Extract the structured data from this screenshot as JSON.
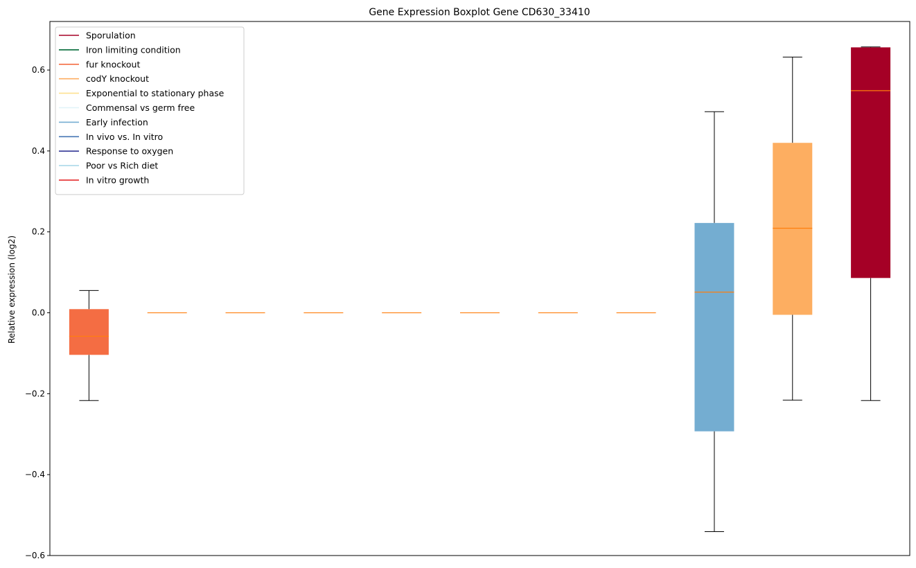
{
  "chart_data": {
    "type": "boxplot",
    "title": "Gene Expression Boxplot Gene CD630_33410",
    "xlabel": "",
    "ylabel": "Relative expression (log2)",
    "ylim": [
      -0.6,
      0.72
    ],
    "yticks": [
      -0.6,
      -0.4,
      -0.2,
      0.0,
      0.2,
      0.4,
      0.6
    ],
    "ytick_labels": [
      "−0.6",
      "−0.4",
      "−0.2",
      "0.0",
      "0.2",
      "0.4",
      "0.6"
    ],
    "grid": false,
    "legend_position": "top-left",
    "median_color": "#ff7f0e",
    "legend": [
      {
        "label": "Sporulation",
        "color": "#a50026"
      },
      {
        "label": "Iron limiting condition",
        "color": "#006837"
      },
      {
        "label": "fur knockout",
        "color": "#f46d43"
      },
      {
        "label": "codY knockout",
        "color": "#fdae61"
      },
      {
        "label": "Exponential to stationary phase",
        "color": "#fee090"
      },
      {
        "label": "Commensal vs germ free",
        "color": "#e0f3f8"
      },
      {
        "label": "Early infection",
        "color": "#74add1"
      },
      {
        "label": "In vivo vs. In vitro",
        "color": "#4575b4"
      },
      {
        "label": "Response to oxygen",
        "color": "#313695"
      },
      {
        "label": "Poor vs Rich diet",
        "color": "#abd9e9"
      },
      {
        "label": "In vitro growth",
        "color": "#e41a1c"
      }
    ],
    "boxes": [
      {
        "whisker_low": -0.217,
        "q1": -0.104,
        "median": -0.058,
        "q3": 0.009,
        "whisker_high": 0.055,
        "color": "#f46d43"
      },
      {
        "whisker_low": 0.0,
        "q1": 0.0,
        "median": 0.0,
        "q3": 0.0,
        "whisker_high": 0.0,
        "color": "#f46d43"
      },
      {
        "whisker_low": 0.0,
        "q1": 0.0,
        "median": 0.0,
        "q3": 0.0,
        "whisker_high": 0.0,
        "color": "#f46d43"
      },
      {
        "whisker_low": 0.0,
        "q1": 0.0,
        "median": 0.0,
        "q3": 0.0,
        "whisker_high": 0.0,
        "color": "#f46d43"
      },
      {
        "whisker_low": 0.0,
        "q1": 0.0,
        "median": 0.0,
        "q3": 0.0,
        "whisker_high": 0.0,
        "color": "#f46d43"
      },
      {
        "whisker_low": 0.0,
        "q1": 0.0,
        "median": 0.0,
        "q3": 0.0,
        "whisker_high": 0.0,
        "color": "#f46d43"
      },
      {
        "whisker_low": 0.0,
        "q1": 0.0,
        "median": 0.0,
        "q3": 0.0,
        "whisker_high": 0.0,
        "color": "#f46d43"
      },
      {
        "whisker_low": 0.0,
        "q1": 0.0,
        "median": 0.0,
        "q3": 0.0,
        "whisker_high": 0.0,
        "color": "#f46d43"
      },
      {
        "whisker_low": -0.541,
        "q1": -0.293,
        "median": 0.051,
        "q3": 0.222,
        "whisker_high": 0.497,
        "color": "#74add1"
      },
      {
        "whisker_low": -0.216,
        "q1": -0.005,
        "median": 0.209,
        "q3": 0.42,
        "whisker_high": 0.632,
        "color": "#fdae61"
      },
      {
        "whisker_low": -0.217,
        "q1": 0.086,
        "median": 0.549,
        "q3": 0.656,
        "whisker_high": 0.657,
        "color": "#a50026"
      }
    ]
  }
}
